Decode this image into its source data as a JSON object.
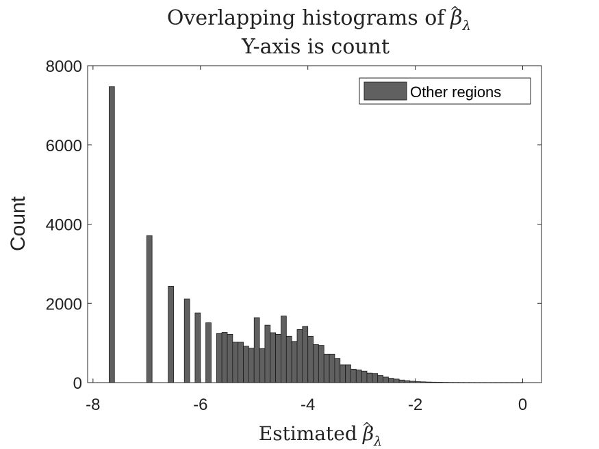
{
  "chart_data": {
    "type": "bar",
    "title_line1_prefix": "Overlapping histograms of ",
    "title_line2": "Y-axis is count",
    "xlabel_prefix": "Estimated ",
    "beta_symbol": "β",
    "hat_symbol": "^",
    "lambda_symbol": "λ",
    "ylabel": "Count",
    "xlim": [
      -8.1,
      0.35
    ],
    "ylim": [
      0,
      8000
    ],
    "xticks": [
      -8,
      -6,
      -4,
      -2,
      0
    ],
    "xtick_labels": [
      "-8",
      "-6",
      "-4",
      "-2",
      "0"
    ],
    "yticks": [
      0,
      2000,
      4000,
      6000,
      8000
    ],
    "ytick_labels": [
      "0",
      "2000",
      "4000",
      "6000",
      "8000"
    ],
    "bin_width": 0.1,
    "bar_color": "#606060",
    "legend": {
      "label": "Other regions",
      "location": "top-right"
    },
    "series": [
      {
        "name": "Other regions",
        "x": [
          -7.65,
          -6.95,
          -6.55,
          -6.25,
          -6.05,
          -5.85,
          -5.65,
          -5.55,
          -5.45,
          -5.35,
          -5.25,
          -5.15,
          -5.05,
          -4.95,
          -4.85,
          -4.75,
          -4.65,
          -4.55,
          -4.45,
          -4.35,
          -4.25,
          -4.15,
          -4.05,
          -3.95,
          -3.85,
          -3.75,
          -3.65,
          -3.55,
          -3.45,
          -3.35,
          -3.25,
          -3.15,
          -3.05,
          -2.95,
          -2.85,
          -2.75,
          -2.65,
          -2.55,
          -2.45,
          -2.35,
          -2.25,
          -2.15,
          -2.05,
          -1.95,
          -1.85,
          -1.75,
          -1.65,
          -1.55,
          -1.45,
          -1.35,
          -1.25,
          -1.15,
          -1.05,
          -0.95,
          -0.85,
          -0.75,
          -0.65,
          -0.55,
          -0.45,
          -0.35,
          -0.25,
          -0.15,
          -0.05
        ],
        "values": [
          7470,
          3710,
          2430,
          2110,
          1760,
          1510,
          1240,
          1270,
          1220,
          1020,
          1020,
          920,
          870,
          1640,
          860,
          1450,
          1260,
          1220,
          1680,
          1170,
          1040,
          1340,
          1420,
          1170,
          960,
          940,
          720,
          720,
          610,
          450,
          450,
          340,
          320,
          290,
          240,
          230,
          180,
          140,
          110,
          90,
          65,
          50,
          35,
          25,
          20,
          15,
          12,
          10,
          8,
          6,
          5,
          4,
          3,
          3,
          2,
          2,
          2,
          1,
          1,
          1,
          1,
          1,
          1
        ]
      }
    ]
  }
}
